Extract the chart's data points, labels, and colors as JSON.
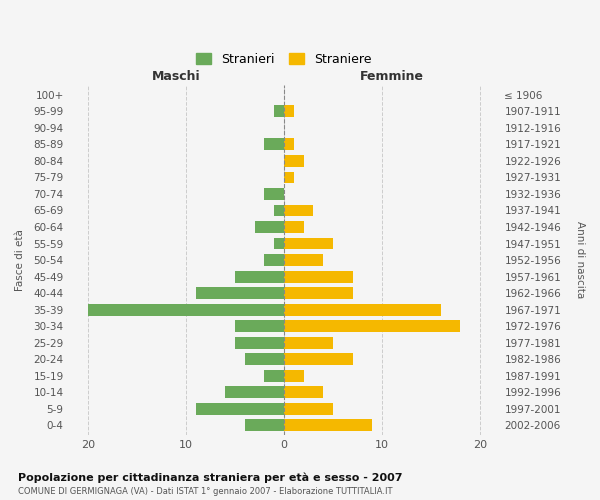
{
  "age_groups": [
    "100+",
    "95-99",
    "90-94",
    "85-89",
    "80-84",
    "75-79",
    "70-74",
    "65-69",
    "60-64",
    "55-59",
    "50-54",
    "45-49",
    "40-44",
    "35-39",
    "30-34",
    "25-29",
    "20-24",
    "15-19",
    "10-14",
    "5-9",
    "0-4"
  ],
  "birth_years": [
    "≤ 1906",
    "1907-1911",
    "1912-1916",
    "1917-1921",
    "1922-1926",
    "1927-1931",
    "1932-1936",
    "1937-1941",
    "1942-1946",
    "1947-1951",
    "1952-1956",
    "1957-1961",
    "1962-1966",
    "1967-1971",
    "1972-1976",
    "1977-1981",
    "1982-1986",
    "1987-1991",
    "1992-1996",
    "1997-2001",
    "2002-2006"
  ],
  "maschi": [
    0,
    1,
    0,
    2,
    0,
    0,
    2,
    1,
    3,
    1,
    2,
    5,
    9,
    20,
    5,
    5,
    4,
    2,
    6,
    9,
    4
  ],
  "femmine": [
    0,
    1,
    0,
    1,
    2,
    1,
    0,
    3,
    2,
    5,
    4,
    7,
    7,
    16,
    18,
    5,
    7,
    2,
    4,
    5,
    9
  ],
  "male_color": "#6aaa5a",
  "female_color": "#f5b800",
  "background_color": "#f5f5f5",
  "grid_color": "#cccccc",
  "title": "Popolazione per cittadinanza straniera per età e sesso - 2007",
  "subtitle": "COMUNE DI GERMIGNAGA (VA) - Dati ISTAT 1° gennaio 2007 - Elaborazione TUTTITALIA.IT",
  "ylabel_left": "Fasce di età",
  "ylabel_right": "Anni di nascita",
  "xlabel_maschi": "Maschi",
  "xlabel_femmine": "Femmine",
  "legend_maschi": "Stranieri",
  "legend_femmine": "Straniere",
  "xlim": 22,
  "bar_height": 0.72
}
